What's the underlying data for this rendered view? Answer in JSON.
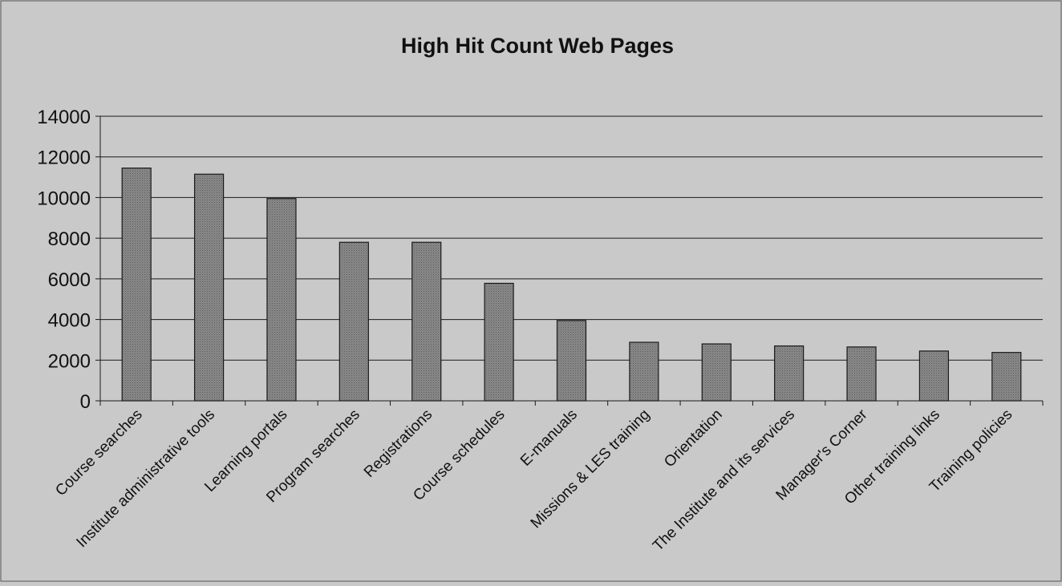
{
  "chart_data": {
    "type": "bar",
    "title": "High Hit Count Web Pages",
    "xlabel": "",
    "ylabel": "",
    "ylim": [
      0,
      14000
    ],
    "yticks": [
      0,
      2000,
      4000,
      6000,
      8000,
      10000,
      12000,
      14000
    ],
    "grid": true,
    "legend": "none",
    "categories": [
      "Course searches",
      "Institute administrative tools",
      "Learning portals",
      "Program searches",
      "Registrations",
      "Course schedules",
      "E-manuals",
      "Missions & LES training",
      "Orientation",
      "The Institute and its services",
      "Manager's Corner",
      "Other training links",
      "Training policies"
    ],
    "values": [
      11450,
      11150,
      9950,
      7800,
      7800,
      5780,
      3950,
      2880,
      2800,
      2700,
      2650,
      2450,
      2380
    ],
    "colors": {
      "background": "#c9c9c9",
      "bar_fill": "#7d7d7d",
      "bar_stroke": "#1a1a1a",
      "grid": "#1a1a1a",
      "text": "#111111"
    }
  }
}
